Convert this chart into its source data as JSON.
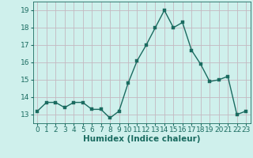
{
  "x": [
    0,
    1,
    2,
    3,
    4,
    5,
    6,
    7,
    8,
    9,
    10,
    11,
    12,
    13,
    14,
    15,
    16,
    17,
    18,
    19,
    20,
    21,
    22,
    23
  ],
  "y": [
    13.2,
    13.7,
    13.7,
    13.4,
    13.7,
    13.7,
    13.3,
    13.3,
    12.8,
    13.2,
    14.8,
    16.1,
    17.0,
    18.0,
    19.0,
    18.0,
    18.3,
    16.7,
    15.9,
    14.9,
    15.0,
    15.2,
    13.0,
    13.2
  ],
  "line_color": "#1a6b60",
  "marker_color": "#1a6b60",
  "bg_color": "#cff0ec",
  "grid_color": "#c4b8c0",
  "axis_color": "#1a6b60",
  "xlabel": "Humidex (Indice chaleur)",
  "ylim": [
    12.5,
    19.5
  ],
  "xlim": [
    -0.5,
    23.5
  ],
  "yticks": [
    13,
    14,
    15,
    16,
    17,
    18,
    19
  ],
  "xticks": [
    0,
    1,
    2,
    3,
    4,
    5,
    6,
    7,
    8,
    9,
    10,
    11,
    12,
    13,
    14,
    15,
    16,
    17,
    18,
    19,
    20,
    21,
    22,
    23
  ],
  "tick_label_fontsize": 6.5,
  "xlabel_fontsize": 7.5,
  "marker_size": 2.5,
  "line_width": 1.0
}
